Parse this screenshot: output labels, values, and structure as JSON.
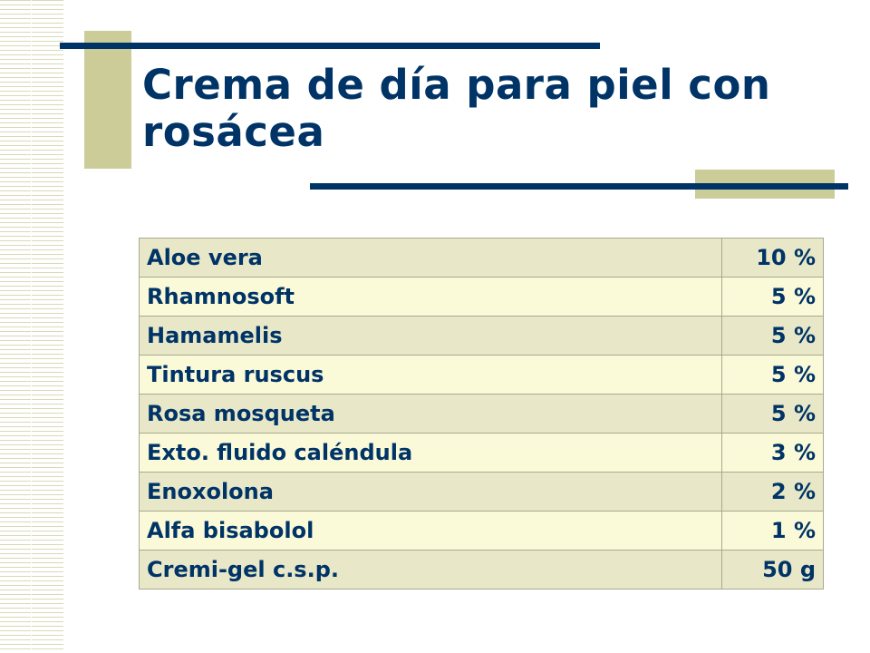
{
  "slide": {
    "title": "Crema de día para piel con rosácea"
  },
  "formula": {
    "rows": [
      {
        "ingredient": "Aloe vera",
        "amount": "10 %"
      },
      {
        "ingredient": "Rhamnosoft",
        "amount": "5 %"
      },
      {
        "ingredient": "Hamamelis",
        "amount": "5 %"
      },
      {
        "ingredient": "Tintura ruscus",
        "amount": "5 %"
      },
      {
        "ingredient": "Rosa mosqueta",
        "amount": "5 %"
      },
      {
        "ingredient": "Exto. fluido caléndula",
        "amount": "3 %"
      },
      {
        "ingredient": "Enoxolona",
        "amount": "2 %"
      },
      {
        "ingredient": "Alfa bisabolol",
        "amount": "1 %"
      },
      {
        "ingredient": "Cremi-gel c.s.p.",
        "amount": "50 g"
      }
    ]
  },
  "colors": {
    "title_text": "#003366",
    "accent_line": "#003366",
    "accent_block": "#cccc99",
    "row_dark": "#e8e8c8",
    "row_light": "#fafad8"
  }
}
